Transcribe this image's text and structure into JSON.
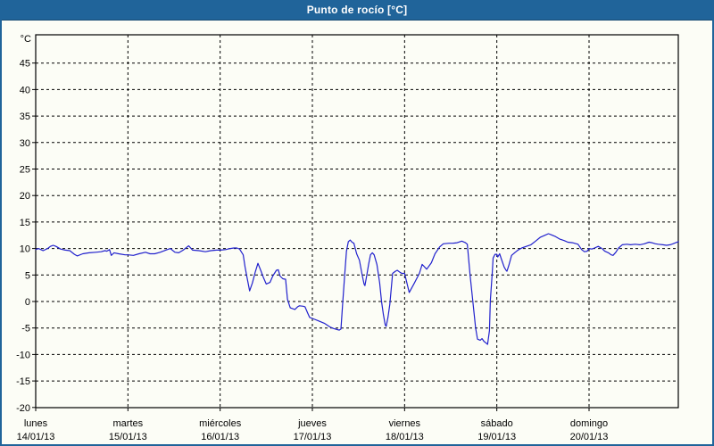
{
  "window": {
    "title": "Punto de rocío [°C]"
  },
  "colors": {
    "titlebar_bg": "#20649a",
    "titlebar_text": "#ffffff",
    "window_border": "#20649a",
    "background": "#fcfdf6",
    "grid": "#000000",
    "axis": "#000000",
    "text": "#000000",
    "line": "#2121cd"
  },
  "chart_data": {
    "type": "line",
    "title": "Punto de rocío [°C]",
    "xlabel": "",
    "ylabel": "°C",
    "ylim": [
      -20,
      50.5
    ],
    "yticks": [
      45,
      40,
      35,
      30,
      25,
      20,
      15,
      10,
      5,
      0,
      -5,
      -10,
      -15,
      -20
    ],
    "grid": "dashed",
    "legend_position": "none",
    "x_axis": {
      "unit": "days since 14/01/13 00:00",
      "range": [
        0,
        7
      ],
      "days": [
        {
          "name": "lunes",
          "date": "14/01/13"
        },
        {
          "name": "martes",
          "date": "15/01/13"
        },
        {
          "name": "miércoles",
          "date": "16/01/13"
        },
        {
          "name": "jueves",
          "date": "17/01/13"
        },
        {
          "name": "viernes",
          "date": "18/01/13"
        },
        {
          "name": "sábado",
          "date": "19/01/13"
        },
        {
          "name": "domingo",
          "date": "20/01/13"
        }
      ]
    },
    "series": [
      {
        "name": "Punto de rocío",
        "color": "#2121cd",
        "points": [
          [
            0.0,
            9.8
          ],
          [
            0.03,
            10.0
          ],
          [
            0.08,
            9.6
          ],
          [
            0.13,
            10.0
          ],
          [
            0.16,
            10.4
          ],
          [
            0.19,
            10.6
          ],
          [
            0.22,
            10.4
          ],
          [
            0.27,
            9.9
          ],
          [
            0.32,
            9.7
          ],
          [
            0.37,
            9.6
          ],
          [
            0.42,
            8.9
          ],
          [
            0.45,
            8.6
          ],
          [
            0.51,
            9.0
          ],
          [
            0.58,
            9.2
          ],
          [
            0.65,
            9.3
          ],
          [
            0.71,
            9.4
          ],
          [
            0.75,
            9.6
          ],
          [
            0.77,
            9.5
          ],
          [
            0.8,
            9.8
          ],
          [
            0.82,
            8.7
          ],
          [
            0.85,
            9.2
          ],
          [
            0.9,
            9.0
          ],
          [
            0.97,
            8.8
          ],
          [
            1.0,
            8.8
          ],
          [
            1.06,
            8.7
          ],
          [
            1.12,
            9.0
          ],
          [
            1.19,
            9.3
          ],
          [
            1.24,
            9.0
          ],
          [
            1.29,
            9.0
          ],
          [
            1.35,
            9.3
          ],
          [
            1.41,
            9.7
          ],
          [
            1.46,
            10.0
          ],
          [
            1.51,
            9.3
          ],
          [
            1.55,
            9.2
          ],
          [
            1.6,
            9.7
          ],
          [
            1.65,
            10.4
          ],
          [
            1.66,
            10.5
          ],
          [
            1.7,
            9.7
          ],
          [
            1.77,
            9.6
          ],
          [
            1.84,
            9.4
          ],
          [
            1.9,
            9.6
          ],
          [
            1.96,
            9.7
          ],
          [
            2.0,
            9.7
          ],
          [
            2.06,
            9.8
          ],
          [
            2.11,
            10.0
          ],
          [
            2.15,
            10.1
          ],
          [
            2.18,
            10.1
          ],
          [
            2.21,
            9.9
          ],
          [
            2.25,
            8.8
          ],
          [
            2.27,
            6.5
          ],
          [
            2.29,
            4.7
          ],
          [
            2.32,
            2.0
          ],
          [
            2.35,
            3.5
          ],
          [
            2.38,
            5.5
          ],
          [
            2.41,
            7.2
          ],
          [
            2.44,
            5.9
          ],
          [
            2.47,
            4.5
          ],
          [
            2.5,
            3.3
          ],
          [
            2.54,
            3.6
          ],
          [
            2.57,
            4.8
          ],
          [
            2.61,
            5.9
          ],
          [
            2.63,
            6.0
          ],
          [
            2.65,
            4.8
          ],
          [
            2.68,
            4.3
          ],
          [
            2.71,
            4.2
          ],
          [
            2.73,
            0.4
          ],
          [
            2.76,
            -1.2
          ],
          [
            2.81,
            -1.5
          ],
          [
            2.84,
            -1.0
          ],
          [
            2.86,
            -0.8
          ],
          [
            2.9,
            -0.9
          ],
          [
            2.92,
            -1.0
          ],
          [
            2.95,
            -2.2
          ],
          [
            2.97,
            -3.0
          ],
          [
            3.0,
            -3.2
          ],
          [
            3.06,
            -3.6
          ],
          [
            3.13,
            -4.1
          ],
          [
            3.19,
            -4.8
          ],
          [
            3.23,
            -5.1
          ],
          [
            3.27,
            -5.3
          ],
          [
            3.29,
            -5.4
          ],
          [
            3.31,
            -5.2
          ],
          [
            3.33,
            0.0
          ],
          [
            3.35,
            5.0
          ],
          [
            3.37,
            9.5
          ],
          [
            3.39,
            11.3
          ],
          [
            3.41,
            11.6
          ],
          [
            3.43,
            11.2
          ],
          [
            3.45,
            11.0
          ],
          [
            3.48,
            9.0
          ],
          [
            3.51,
            7.8
          ],
          [
            3.54,
            5.0
          ],
          [
            3.56,
            3.3
          ],
          [
            3.57,
            3.0
          ],
          [
            3.59,
            5.0
          ],
          [
            3.61,
            7.0
          ],
          [
            3.63,
            8.8
          ],
          [
            3.65,
            9.2
          ],
          [
            3.67,
            8.8
          ],
          [
            3.7,
            7.0
          ],
          [
            3.73,
            3.5
          ],
          [
            3.75,
            0.0
          ],
          [
            3.77,
            -2.5
          ],
          [
            3.79,
            -4.4
          ],
          [
            3.8,
            -4.7
          ],
          [
            3.82,
            -3.0
          ],
          [
            3.84,
            -0.5
          ],
          [
            3.87,
            5.3
          ],
          [
            3.9,
            5.7
          ],
          [
            3.92,
            5.9
          ],
          [
            3.95,
            5.5
          ],
          [
            3.97,
            5.3
          ],
          [
            4.0,
            5.3
          ],
          [
            4.05,
            1.7
          ],
          [
            4.1,
            3.3
          ],
          [
            4.16,
            5.3
          ],
          [
            4.19,
            7.0
          ],
          [
            4.24,
            6.1
          ],
          [
            4.29,
            7.3
          ],
          [
            4.33,
            9.0
          ],
          [
            4.38,
            10.3
          ],
          [
            4.42,
            10.9
          ],
          [
            4.48,
            11.0
          ],
          [
            4.52,
            11.0
          ],
          [
            4.57,
            11.1
          ],
          [
            4.62,
            11.4
          ],
          [
            4.66,
            11.1
          ],
          [
            4.68,
            10.8
          ],
          [
            4.71,
            5.0
          ],
          [
            4.74,
            0.0
          ],
          [
            4.77,
            -5.0
          ],
          [
            4.79,
            -7.1
          ],
          [
            4.82,
            -7.3
          ],
          [
            4.84,
            -7.0
          ],
          [
            4.86,
            -7.5
          ],
          [
            4.88,
            -7.8
          ],
          [
            4.9,
            -8.1
          ],
          [
            4.92,
            -5.5
          ],
          [
            4.93,
            0.2
          ],
          [
            4.95,
            5.3
          ],
          [
            4.96,
            8.2
          ],
          [
            4.98,
            8.9
          ],
          [
            5.0,
            8.9
          ],
          [
            5.01,
            8.4
          ],
          [
            5.03,
            9.0
          ],
          [
            5.05,
            8.0
          ],
          [
            5.08,
            6.5
          ],
          [
            5.1,
            5.9
          ],
          [
            5.11,
            5.7
          ],
          [
            5.13,
            6.8
          ],
          [
            5.16,
            8.7
          ],
          [
            5.2,
            9.3
          ],
          [
            5.23,
            9.7
          ],
          [
            5.27,
            10.1
          ],
          [
            5.32,
            10.4
          ],
          [
            5.37,
            10.7
          ],
          [
            5.42,
            11.4
          ],
          [
            5.47,
            12.1
          ],
          [
            5.52,
            12.5
          ],
          [
            5.56,
            12.8
          ],
          [
            5.59,
            12.6
          ],
          [
            5.63,
            12.3
          ],
          [
            5.68,
            11.8
          ],
          [
            5.73,
            11.5
          ],
          [
            5.77,
            11.2
          ],
          [
            5.82,
            11.1
          ],
          [
            5.88,
            10.8
          ],
          [
            5.92,
            9.8
          ],
          [
            5.95,
            9.4
          ],
          [
            5.98,
            9.5
          ],
          [
            6.0,
            10.0
          ],
          [
            6.03,
            9.9
          ],
          [
            6.06,
            10.1
          ],
          [
            6.1,
            10.4
          ],
          [
            6.14,
            10.0
          ],
          [
            6.17,
            9.5
          ],
          [
            6.21,
            9.2
          ],
          [
            6.24,
            8.8
          ],
          [
            6.26,
            8.7
          ],
          [
            6.29,
            9.3
          ],
          [
            6.32,
            10.1
          ],
          [
            6.36,
            10.7
          ],
          [
            6.41,
            10.8
          ],
          [
            6.45,
            10.7
          ],
          [
            6.5,
            10.8
          ],
          [
            6.55,
            10.7
          ],
          [
            6.6,
            10.9
          ],
          [
            6.65,
            11.2
          ],
          [
            6.68,
            11.1
          ],
          [
            6.72,
            10.9
          ],
          [
            6.75,
            10.8
          ],
          [
            6.8,
            10.7
          ],
          [
            6.84,
            10.6
          ],
          [
            6.88,
            10.7
          ],
          [
            6.91,
            10.9
          ],
          [
            6.94,
            11.1
          ],
          [
            6.97,
            11.3
          ]
        ]
      }
    ]
  }
}
